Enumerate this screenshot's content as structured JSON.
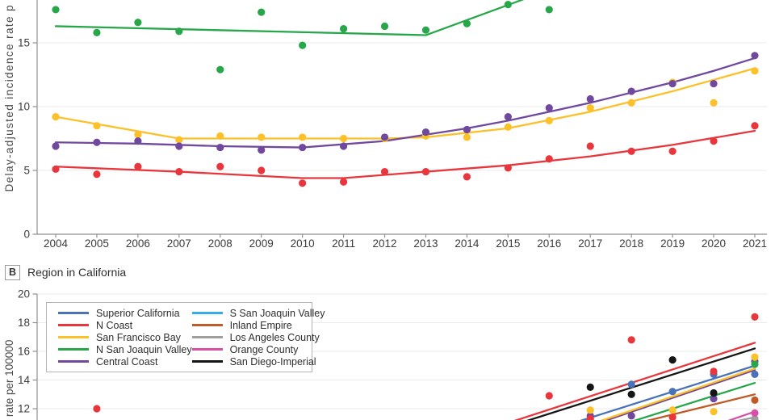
{
  "figure": {
    "panel_a": {
      "ylabel_visible": "Delay-adjusted incidence rate p"
    },
    "panel_b": {
      "panel_letter": "B",
      "panel_title": "Region in California",
      "ylabel_visible": "rate per 100000"
    }
  },
  "colors": {
    "green": "#27a74a",
    "purple": "#70489d",
    "yellow": "#fcc028",
    "red": "#e8363c",
    "blue": "#4a72b8",
    "lightblue": "#35ace8",
    "orange": "#c05a28",
    "gray": "#9d9d9d",
    "magenta": "#d94fa8",
    "black": "#151515",
    "grid": "#ebebeb",
    "axis": "#8f8f8f",
    "text": "#3b3b3b"
  },
  "chart_data": [
    {
      "type": "scatter",
      "panel": "A",
      "title": "",
      "ylabel_visible": "Delay-adjusted incidence rate p",
      "x_ticks": [
        2004,
        2005,
        2006,
        2007,
        2008,
        2009,
        2010,
        2011,
        2012,
        2013,
        2014,
        2015,
        2016,
        2017,
        2018,
        2019,
        2020,
        2021
      ],
      "y_ticks": [
        0,
        5,
        10,
        15
      ],
      "legend_visible": false,
      "series": [
        {
          "name": "green-series",
          "color_key": "green",
          "points": [
            [
              2004,
              17.6
            ],
            [
              2005,
              15.8
            ],
            [
              2006,
              16.6
            ],
            [
              2007,
              15.9
            ],
            [
              2008,
              12.9
            ],
            [
              2009,
              17.4
            ],
            [
              2010,
              14.8
            ],
            [
              2011,
              16.1
            ],
            [
              2012,
              16.3
            ],
            [
              2013,
              16.0
            ],
            [
              2014,
              16.5
            ],
            [
              2015,
              18.0
            ],
            [
              2016,
              17.6
            ]
          ],
          "trend": [
            [
              2004,
              16.3
            ],
            [
              2013,
              15.6
            ],
            [
              2015.45,
              18.5
            ]
          ]
        },
        {
          "name": "purple-series",
          "color_key": "purple",
          "points": [
            [
              2004,
              6.9
            ],
            [
              2005,
              7.2
            ],
            [
              2006,
              7.3
            ],
            [
              2007,
              6.9
            ],
            [
              2008,
              6.8
            ],
            [
              2009,
              6.6
            ],
            [
              2010,
              6.8
            ],
            [
              2011,
              6.9
            ],
            [
              2012,
              7.6
            ],
            [
              2013,
              8.0
            ],
            [
              2014,
              8.2
            ],
            [
              2015,
              9.2
            ],
            [
              2016,
              9.9
            ],
            [
              2017,
              10.6
            ],
            [
              2018,
              11.2
            ],
            [
              2019,
              11.8
            ],
            [
              2020,
              11.8
            ],
            [
              2021,
              14.0
            ]
          ],
          "trend": [
            [
              2004,
              7.2
            ],
            [
              2006,
              7.1
            ],
            [
              2008,
              6.9
            ],
            [
              2010,
              6.8
            ],
            [
              2012,
              7.3
            ],
            [
              2013,
              7.8
            ],
            [
              2014,
              8.3
            ],
            [
              2015,
              8.9
            ],
            [
              2016,
              9.6
            ],
            [
              2017,
              10.3
            ],
            [
              2018,
              11.1
            ],
            [
              2019,
              11.9
            ],
            [
              2020,
              12.8
            ],
            [
              2021,
              13.8
            ]
          ]
        },
        {
          "name": "yellow-series",
          "color_key": "yellow",
          "points": [
            [
              2004,
              9.2
            ],
            [
              2005,
              8.5
            ],
            [
              2006,
              7.8
            ],
            [
              2007,
              7.4
            ],
            [
              2008,
              7.7
            ],
            [
              2009,
              7.6
            ],
            [
              2010,
              7.6
            ],
            [
              2011,
              7.5
            ],
            [
              2012,
              7.5
            ],
            [
              2013,
              7.7
            ],
            [
              2014,
              7.6
            ],
            [
              2015,
              8.4
            ],
            [
              2016,
              8.9
            ],
            [
              2017,
              9.9
            ],
            [
              2018,
              10.3
            ],
            [
              2019,
              11.9
            ],
            [
              2020,
              10.3
            ],
            [
              2021,
              12.8
            ]
          ],
          "trend": [
            [
              2004,
              9.2
            ],
            [
              2007,
              7.5
            ],
            [
              2012,
              7.5
            ],
            [
              2013,
              7.6
            ],
            [
              2015,
              8.3
            ],
            [
              2017,
              9.6
            ],
            [
              2018,
              10.4
            ],
            [
              2019,
              11.2
            ],
            [
              2020,
              12.1
            ],
            [
              2021,
              13.0
            ]
          ]
        },
        {
          "name": "red-series",
          "color_key": "red",
          "points": [
            [
              2004,
              5.1
            ],
            [
              2005,
              4.7
            ],
            [
              2006,
              5.3
            ],
            [
              2007,
              4.9
            ],
            [
              2008,
              5.3
            ],
            [
              2009,
              5.0
            ],
            [
              2010,
              4.0
            ],
            [
              2011,
              4.1
            ],
            [
              2012,
              4.9
            ],
            [
              2013,
              4.9
            ],
            [
              2014,
              4.5
            ],
            [
              2015,
              5.2
            ],
            [
              2016,
              5.9
            ],
            [
              2017,
              6.9
            ],
            [
              2018,
              6.5
            ],
            [
              2019,
              6.5
            ],
            [
              2020,
              7.3
            ],
            [
              2021,
              8.5
            ]
          ],
          "trend": [
            [
              2004,
              5.3
            ],
            [
              2007,
              4.9
            ],
            [
              2010,
              4.4
            ],
            [
              2011,
              4.4
            ],
            [
              2013,
              4.9
            ],
            [
              2015,
              5.4
            ],
            [
              2017,
              6.1
            ],
            [
              2019,
              7.0
            ],
            [
              2021,
              8.1
            ]
          ]
        }
      ]
    },
    {
      "type": "scatter",
      "panel": "B",
      "title": "Region in California",
      "ylabel_visible": "rate per 100000",
      "x_range": [
        2004,
        2021
      ],
      "y_ticks": [
        20,
        18,
        16,
        14,
        12
      ],
      "legend_position": "top-left",
      "series": [
        {
          "name": "Superior California",
          "color_key": "blue",
          "points": [
            [
              2018,
              13.7
            ],
            [
              2019,
              13.2
            ],
            [
              2020,
              14.4
            ],
            [
              2021,
              14.4
            ]
          ],
          "trend": [
            [
              2016.7,
              11.1
            ],
            [
              2021,
              15.0
            ]
          ]
        },
        {
          "name": "N Coast",
          "color_key": "red",
          "points": [
            [
              2005,
              12.0
            ],
            [
              2016,
              12.9
            ],
            [
              2017,
              11.3
            ],
            [
              2018,
              16.8
            ],
            [
              2019,
              11.4
            ],
            [
              2020,
              14.6
            ],
            [
              2021,
              18.4
            ]
          ],
          "trend": [
            [
              2015.1,
              11.1
            ],
            [
              2021,
              16.6
            ]
          ]
        },
        {
          "name": "San Francisco Bay",
          "color_key": "yellow",
          "points": [
            [
              2017,
              11.9
            ],
            [
              2019,
              11.9
            ],
            [
              2020,
              11.8
            ],
            [
              2021,
              15.6
            ]
          ],
          "trend": [
            [
              2017.2,
              11.1
            ],
            [
              2021,
              14.8
            ]
          ]
        },
        {
          "name": "N San Joaquin Valley",
          "color_key": "green",
          "points": [
            [
              2021,
              15.1
            ]
          ],
          "trend": [
            [
              2018,
              11.1
            ],
            [
              2021,
              13.8
            ]
          ]
        },
        {
          "name": "Central Coast",
          "color_key": "purple",
          "points": [
            [
              2017,
              11.5
            ],
            [
              2018,
              11.5
            ],
            [
              2020,
              12.7
            ],
            [
              2021,
              15.3
            ]
          ],
          "trend": [
            [
              2017.3,
              11.1
            ],
            [
              2021,
              14.7
            ]
          ]
        },
        {
          "name": "S San Joaquin Valley",
          "color_key": "lightblue",
          "points": [],
          "trend": []
        },
        {
          "name": "Inland Empire",
          "color_key": "orange",
          "points": [
            [
              2021,
              12.6
            ]
          ],
          "trend": [
            [
              2018.3,
              11.1
            ],
            [
              2021,
              13.0
            ]
          ]
        },
        {
          "name": "Los Angeles County",
          "color_key": "gray",
          "points": [
            [
              2021,
              11.3
            ]
          ],
          "trend": [
            [
              2020.5,
              11.1
            ],
            [
              2021,
              11.4
            ]
          ]
        },
        {
          "name": "Orange County",
          "color_key": "magenta",
          "points": [
            [
              2021,
              11.7
            ]
          ],
          "trend": [
            [
              2020.3,
              11.1
            ],
            [
              2021,
              11.8
            ]
          ]
        },
        {
          "name": "San Diego-Imperial",
          "color_key": "black",
          "points": [
            [
              2017,
              13.5
            ],
            [
              2018,
              13.0
            ],
            [
              2019,
              15.4
            ],
            [
              2020,
              13.1
            ]
          ],
          "trend": [
            [
              2015.4,
              11.1
            ],
            [
              2021,
              16.2
            ]
          ]
        }
      ]
    }
  ]
}
